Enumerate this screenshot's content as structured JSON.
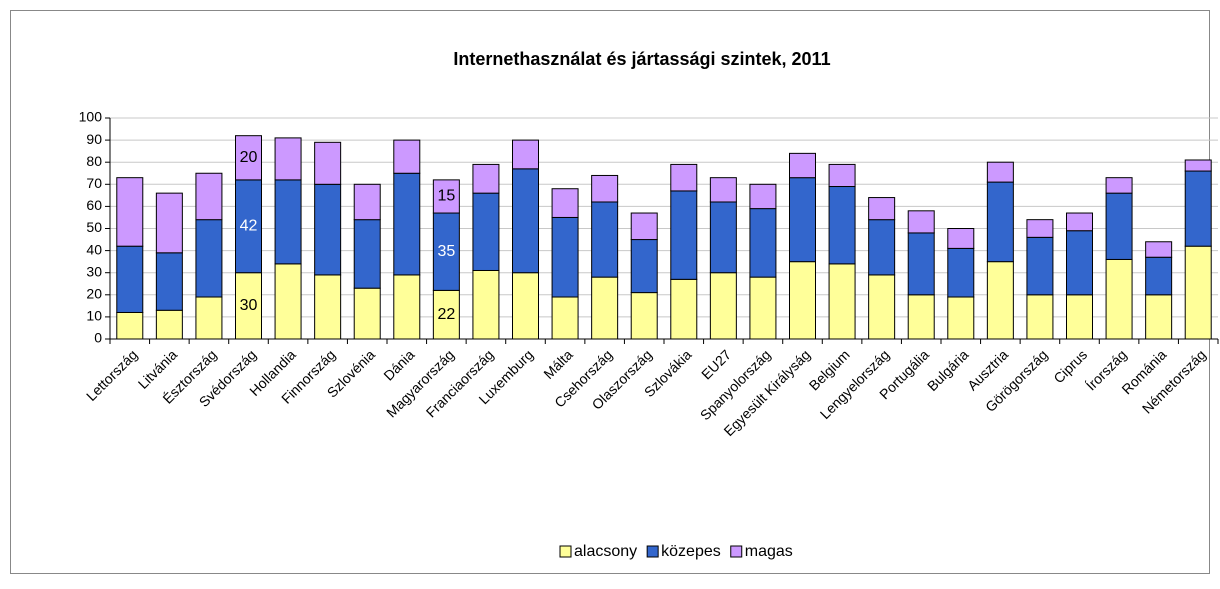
{
  "chart_data": {
    "type": "stacked_bar",
    "title": "Internethasználat  és jártassági szintek, 2011",
    "categories": [
      "Lettország",
      "Litvánia",
      "Észtország",
      "Svédország",
      "Hollandia",
      "Finnország",
      "Szlovénia",
      "Dánia",
      "Magyarország",
      "Franciaország",
      "Luxemburg",
      "Málta",
      "Csehország",
      "Olaszország",
      "Szlovákia",
      "EU27",
      "Spanyolország",
      "Egyesült Királyság",
      "Belgium",
      "Lengyelország",
      "Portugália",
      "Bulgária",
      "Ausztria",
      "Görögország",
      "Ciprus",
      "Írország",
      "Románia",
      "Németország"
    ],
    "series": [
      {
        "name": "alacsony",
        "color": "#ffff99",
        "values": [
          12,
          13,
          19,
          30,
          34,
          29,
          23,
          29,
          22,
          31,
          30,
          19,
          28,
          21,
          27,
          30,
          28,
          35,
          34,
          29,
          20,
          19,
          35,
          20,
          20,
          36,
          20,
          42
        ],
        "value_labels": [
          null,
          null,
          null,
          "30",
          null,
          null,
          null,
          null,
          "22",
          null,
          null,
          null,
          null,
          null,
          null,
          null,
          null,
          null,
          null,
          null,
          null,
          null,
          null,
          null,
          null,
          null,
          null,
          null
        ],
        "label_color": "#000000"
      },
      {
        "name": "közepes",
        "color": "#3366cc",
        "values": [
          30,
          26,
          35,
          42,
          38,
          41,
          31,
          46,
          35,
          35,
          47,
          36,
          34,
          24,
          40,
          32,
          31,
          38,
          35,
          25,
          28,
          22,
          36,
          26,
          29,
          30,
          17,
          34
        ],
        "value_labels": [
          null,
          null,
          null,
          "42",
          null,
          null,
          null,
          null,
          "35",
          null,
          null,
          null,
          null,
          null,
          null,
          null,
          null,
          null,
          null,
          null,
          null,
          null,
          null,
          null,
          null,
          null,
          null,
          null
        ],
        "label_color": "#ffffff"
      },
      {
        "name": "magas",
        "color": "#cc99ff",
        "values": [
          31,
          27,
          21,
          20,
          19,
          19,
          16,
          15,
          15,
          13,
          13,
          13,
          12,
          12,
          12,
          11,
          11,
          11,
          10,
          10,
          10,
          9,
          9,
          8,
          8,
          7,
          7,
          5
        ],
        "value_labels": [
          null,
          null,
          null,
          "20",
          null,
          null,
          null,
          null,
          "15",
          null,
          null,
          null,
          null,
          null,
          null,
          null,
          null,
          null,
          null,
          null,
          null,
          null,
          null,
          null,
          null,
          null,
          null,
          null
        ],
        "label_color": "#000000"
      }
    ],
    "ylim": [
      0,
      100
    ],
    "yticks": [
      0,
      10,
      20,
      30,
      40,
      50,
      60,
      70,
      80,
      90,
      100
    ],
    "grid": true,
    "legend": "bottom"
  }
}
